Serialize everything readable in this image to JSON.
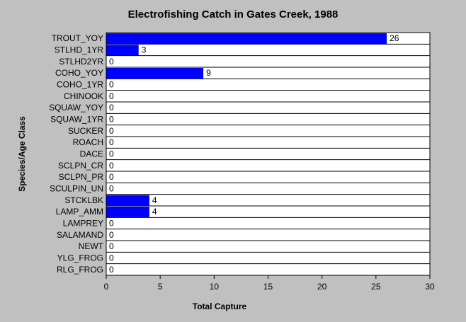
{
  "chart_data": {
    "type": "bar",
    "orientation": "horizontal",
    "title": "Electrofishing Catch in Gates Creek, 1988",
    "xlabel": "Total Capture",
    "ylabel": "Species/Age Class",
    "xlim": [
      0,
      30
    ],
    "xticks": [
      0,
      5,
      10,
      15,
      20,
      25,
      30
    ],
    "grid": "horizontal",
    "bar_color": "#0000ff",
    "categories": [
      "TROUT_YOY",
      "STLHD_1YR",
      "STLHD2YR",
      "COHO_YOY",
      "COHO_1YR",
      "CHINOOK",
      "SQUAW_YOY",
      "SQUAW_1YR",
      "SUCKER",
      "ROACH",
      "DACE",
      "SCLPN_CR",
      "SCLPN_PR",
      "SCULPIN_UN",
      "STCKLBK",
      "LAMP_AMM",
      "LAMPREY",
      "SALAMAND",
      "NEWT",
      "YLG_FROG",
      "RLG_FROG"
    ],
    "values": [
      26,
      3,
      0,
      9,
      0,
      0,
      0,
      0,
      0,
      0,
      0,
      0,
      0,
      0,
      4,
      4,
      0,
      0,
      0,
      0,
      0
    ]
  }
}
